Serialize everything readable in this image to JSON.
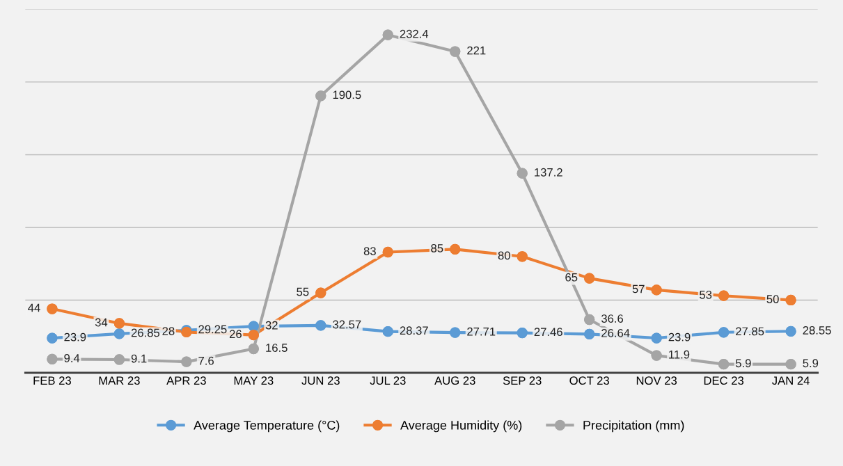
{
  "chart_data": {
    "type": "line",
    "categories": [
      "FEB 23",
      "MAR 23",
      "APR 23",
      "MAY 23",
      "JUN 23",
      "JUL 23",
      "AUG 23",
      "SEP 23",
      "OCT 23",
      "NOV 23",
      "DEC 23",
      "JAN 24"
    ],
    "series": [
      {
        "name": "Average Temperature (°C)",
        "color": "#5b9bd5",
        "values": [
          23.9,
          26.85,
          29.25,
          32,
          32.57,
          28.37,
          27.71,
          27.46,
          26.64,
          23.9,
          27.85,
          28.55
        ]
      },
      {
        "name": "Average Humidity (%)",
        "color": "#ed7d31",
        "values": [
          44,
          34,
          28,
          26,
          55,
          83,
          85,
          80,
          65,
          57,
          53,
          50
        ]
      },
      {
        "name": "Precipitation (mm)",
        "color": "#a5a5a5",
        "values": [
          9.4,
          9.1,
          7.6,
          16.5,
          190.5,
          232.4,
          221,
          137.2,
          36.6,
          11.9,
          5.9,
          5.9
        ]
      }
    ],
    "ylim": [
      0,
      250
    ],
    "yticks": [
      {
        "value": 0,
        "label": null
      },
      {
        "value": 50,
        "label": null
      },
      {
        "value": 100,
        "label": null
      },
      {
        "value": 150,
        "label": null
      },
      {
        "value": 200,
        "label": null
      },
      {
        "value": 250,
        "label": null
      }
    ],
    "grid": "y",
    "legend": "bottom",
    "marker": "circle",
    "line_style": "solid",
    "data_labels": true
  }
}
